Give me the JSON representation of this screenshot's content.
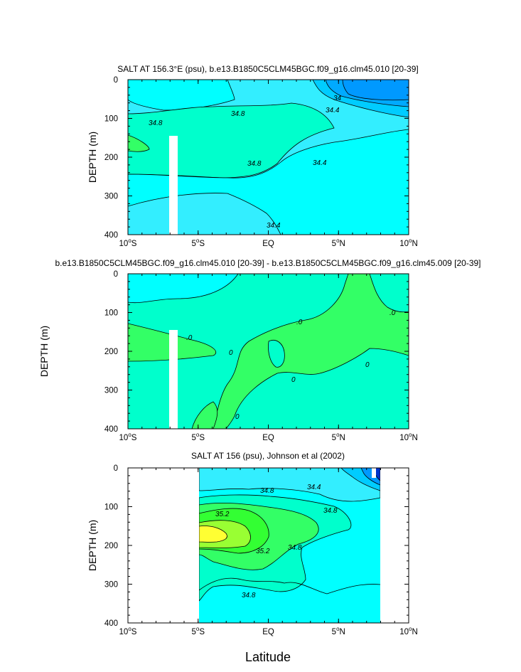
{
  "chart_data": [
    {
      "type": "contour",
      "title": "SALT AT 156.3°E (psu), b.e13.B1850C5CLM45BGC.f09_g16.clm45.010 [20-39]",
      "ylabel": "DEPTH (m)",
      "xlabel": "",
      "x_ticks": [
        "10°S",
        "5°S",
        "EQ",
        "5°N",
        "10°N"
      ],
      "y_ticks": [
        "0",
        "100",
        "200",
        "300",
        "400"
      ],
      "xlim": [
        -10,
        10
      ],
      "ylim": [
        400,
        0
      ],
      "contour_labels": [
        "34",
        "34.4",
        "34.8",
        "34.8",
        "34.8",
        "34.4",
        "34.4"
      ]
    },
    {
      "type": "contour",
      "title": "b.e13.B1850C5CLM45BGC.f09_g16.clm45.010 [20-39] - b.e13.B1850C5CLM45BGC.f09_g16.clm45.009 [20-39]",
      "ylabel": "DEPTH (m)",
      "xlabel": "",
      "x_ticks": [
        "10°S",
        "5°S",
        "EQ",
        "5°N",
        "10°N"
      ],
      "y_ticks": [
        "0",
        "100",
        "200",
        "300",
        "400"
      ],
      "xlim": [
        -10,
        10
      ],
      "ylim": [
        400,
        0
      ],
      "contour_labels": [
        ".0",
        ".0",
        "0",
        "0",
        "0",
        "0",
        ".0"
      ]
    },
    {
      "type": "contour",
      "title": "SALT AT 156 (psu), Johnson et al (2002)",
      "ylabel": "DEPTH (m)",
      "xlabel": "Latitude",
      "x_ticks": [
        "10°S",
        "5°S",
        "EQ",
        "5°N",
        "10°N"
      ],
      "y_ticks": [
        "0",
        "100",
        "200",
        "300",
        "400"
      ],
      "xlim": [
        -10,
        10
      ],
      "ylim": [
        400,
        0
      ],
      "contour_labels": [
        "34.8",
        "34.4",
        "35.2",
        "34.8",
        "35.2",
        "34.8",
        "34.8"
      ]
    }
  ],
  "colors": {
    "light_cyan": "#33eeff",
    "cyan": "#00ffff",
    "aqua": "#00ffcc",
    "green": "#33ff66",
    "med_green": "#33ff33",
    "yellow_green": "#99ff33",
    "yellow": "#ffff33",
    "light_blue": "#00ccff",
    "blue": "#0099ff",
    "dark_blue": "#0033cc"
  }
}
